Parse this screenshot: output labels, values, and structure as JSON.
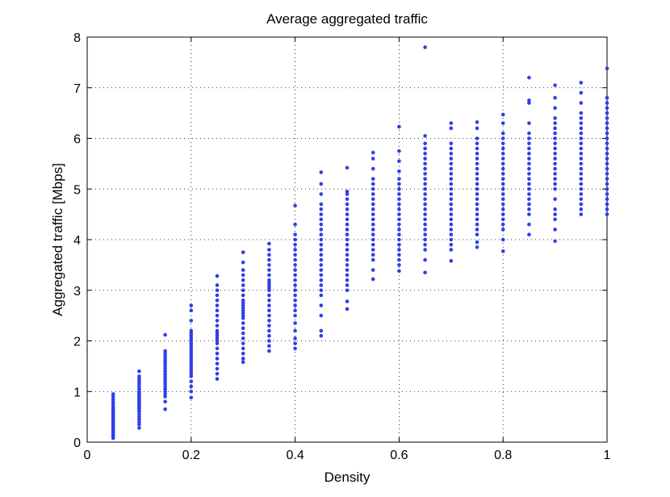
{
  "chart_data": {
    "type": "scatter",
    "title": "Average aggregated traffic",
    "xlabel": "Density",
    "ylabel": "Aggregated traffic [Mbps]",
    "xlim": [
      0,
      1
    ],
    "ylim": [
      0,
      8
    ],
    "x_ticks": [
      0,
      0.2,
      0.4,
      0.6,
      0.8,
      1
    ],
    "x_tick_labels": [
      "0",
      "0.2",
      "0.4",
      "0.6",
      "0.8",
      "1"
    ],
    "y_ticks": [
      0,
      1,
      2,
      3,
      4,
      5,
      6,
      7,
      8
    ],
    "y_tick_labels": [
      "0",
      "1",
      "2",
      "3",
      "4",
      "5",
      "6",
      "7",
      "8"
    ],
    "grid": true,
    "marker_color": "#2f3fe8",
    "groups": [
      {
        "x": 0.05,
        "y": [
          0.08,
          0.12,
          0.15,
          0.18,
          0.2,
          0.22,
          0.25,
          0.28,
          0.3,
          0.32,
          0.35,
          0.38,
          0.4,
          0.42,
          0.45,
          0.48,
          0.5,
          0.52,
          0.55,
          0.58,
          0.6,
          0.62,
          0.65,
          0.68,
          0.7,
          0.75,
          0.8,
          0.85,
          0.9,
          0.95
        ]
      },
      {
        "x": 0.1,
        "y": [
          0.28,
          0.35,
          0.4,
          0.45,
          0.5,
          0.55,
          0.6,
          0.62,
          0.65,
          0.68,
          0.7,
          0.72,
          0.75,
          0.78,
          0.8,
          0.82,
          0.85,
          0.88,
          0.9,
          0.92,
          0.95,
          0.98,
          1.0,
          1.05,
          1.1,
          1.15,
          1.2,
          1.25,
          1.3,
          1.4
        ]
      },
      {
        "x": 0.15,
        "y": [
          0.65,
          0.8,
          0.9,
          0.95,
          1.0,
          1.05,
          1.1,
          1.15,
          1.2,
          1.25,
          1.3,
          1.35,
          1.4,
          1.45,
          1.5,
          1.55,
          1.6,
          1.65,
          1.7,
          1.75,
          1.8,
          2.12
        ]
      },
      {
        "x": 0.2,
        "y": [
          0.88,
          1.0,
          1.1,
          1.2,
          1.3,
          1.35,
          1.4,
          1.45,
          1.5,
          1.55,
          1.6,
          1.65,
          1.7,
          1.75,
          1.8,
          1.85,
          1.9,
          1.95,
          2.0,
          2.05,
          2.1,
          2.15,
          2.2,
          2.4,
          2.6,
          2.7
        ]
      },
      {
        "x": 0.25,
        "y": [
          1.25,
          1.35,
          1.45,
          1.55,
          1.65,
          1.75,
          1.85,
          1.95,
          2.0,
          2.05,
          2.1,
          2.15,
          2.2,
          2.3,
          2.4,
          2.5,
          2.6,
          2.7,
          2.8,
          2.9,
          3.0,
          3.1,
          3.28
        ]
      },
      {
        "x": 0.3,
        "y": [
          1.58,
          1.65,
          1.75,
          1.85,
          1.95,
          2.05,
          2.15,
          2.25,
          2.35,
          2.45,
          2.5,
          2.55,
          2.6,
          2.65,
          2.7,
          2.75,
          2.8,
          2.9,
          3.0,
          3.1,
          3.2,
          3.3,
          3.4,
          3.55,
          3.75
        ]
      },
      {
        "x": 0.35,
        "y": [
          1.8,
          1.9,
          2.0,
          2.1,
          2.2,
          2.3,
          2.4,
          2.5,
          2.6,
          2.7,
          2.8,
          2.9,
          3.0,
          3.05,
          3.1,
          3.15,
          3.2,
          3.3,
          3.4,
          3.5,
          3.6,
          3.7,
          3.8,
          3.92
        ]
      },
      {
        "x": 0.4,
        "y": [
          1.85,
          1.95,
          2.05,
          2.2,
          2.35,
          2.5,
          2.6,
          2.7,
          2.8,
          2.9,
          3.0,
          3.1,
          3.2,
          3.3,
          3.4,
          3.5,
          3.6,
          3.7,
          3.8,
          3.9,
          4.0,
          4.1,
          4.3,
          4.67
        ]
      },
      {
        "x": 0.45,
        "y": [
          2.1,
          2.2,
          2.5,
          2.7,
          2.9,
          3.0,
          3.1,
          3.2,
          3.3,
          3.4,
          3.5,
          3.6,
          3.7,
          3.8,
          3.9,
          4.0,
          4.1,
          4.2,
          4.3,
          4.4,
          4.5,
          4.6,
          4.7,
          4.9,
          5.1,
          5.33
        ]
      },
      {
        "x": 0.5,
        "y": [
          2.63,
          2.78,
          3.0,
          3.1,
          3.2,
          3.3,
          3.4,
          3.5,
          3.6,
          3.7,
          3.8,
          3.9,
          4.0,
          4.1,
          4.2,
          4.3,
          4.4,
          4.5,
          4.6,
          4.7,
          4.8,
          4.9,
          4.95,
          5.42
        ]
      },
      {
        "x": 0.55,
        "y": [
          3.22,
          3.4,
          3.6,
          3.7,
          3.8,
          3.9,
          4.0,
          4.1,
          4.2,
          4.3,
          4.4,
          4.5,
          4.6,
          4.7,
          4.8,
          4.9,
          5.0,
          5.1,
          5.2,
          5.4,
          5.6,
          5.72
        ]
      },
      {
        "x": 0.6,
        "y": [
          3.38,
          3.5,
          3.6,
          3.7,
          3.8,
          3.9,
          4.0,
          4.1,
          4.2,
          4.3,
          4.4,
          4.5,
          4.6,
          4.7,
          4.8,
          4.9,
          5.0,
          5.1,
          5.2,
          5.35,
          5.55,
          5.75,
          6.23
        ]
      },
      {
        "x": 0.65,
        "y": [
          3.35,
          3.6,
          3.8,
          3.9,
          4.0,
          4.1,
          4.2,
          4.3,
          4.4,
          4.5,
          4.6,
          4.7,
          4.8,
          4.9,
          5.0,
          5.1,
          5.2,
          5.3,
          5.4,
          5.5,
          5.6,
          5.7,
          5.8,
          5.9,
          6.05,
          7.8
        ]
      },
      {
        "x": 0.7,
        "y": [
          3.58,
          3.8,
          3.9,
          4.0,
          4.1,
          4.2,
          4.3,
          4.4,
          4.5,
          4.6,
          4.7,
          4.8,
          4.9,
          5.0,
          5.1,
          5.2,
          5.3,
          5.4,
          5.5,
          5.6,
          5.7,
          5.8,
          5.9,
          6.2,
          6.3
        ]
      },
      {
        "x": 0.75,
        "y": [
          3.85,
          3.95,
          4.1,
          4.2,
          4.3,
          4.4,
          4.5,
          4.6,
          4.7,
          4.8,
          4.9,
          5.0,
          5.1,
          5.2,
          5.3,
          5.4,
          5.5,
          5.6,
          5.7,
          5.8,
          5.9,
          6.0,
          6.2,
          6.32
        ]
      },
      {
        "x": 0.8,
        "y": [
          3.77,
          4.0,
          4.2,
          4.3,
          4.4,
          4.5,
          4.6,
          4.7,
          4.8,
          4.9,
          5.0,
          5.1,
          5.2,
          5.3,
          5.4,
          5.5,
          5.6,
          5.7,
          5.8,
          5.9,
          6.0,
          6.1,
          6.3,
          6.47
        ]
      },
      {
        "x": 0.85,
        "y": [
          4.1,
          4.3,
          4.5,
          4.6,
          4.7,
          4.8,
          4.9,
          5.0,
          5.1,
          5.2,
          5.3,
          5.4,
          5.5,
          5.6,
          5.7,
          5.8,
          5.9,
          6.0,
          6.1,
          6.3,
          6.7,
          6.75,
          7.2
        ]
      },
      {
        "x": 0.9,
        "y": [
          3.97,
          4.2,
          4.4,
          4.5,
          4.6,
          4.8,
          5.0,
          5.1,
          5.2,
          5.3,
          5.4,
          5.5,
          5.6,
          5.7,
          5.8,
          5.9,
          6.0,
          6.1,
          6.2,
          6.3,
          6.4,
          6.6,
          6.8,
          7.05
        ]
      },
      {
        "x": 0.95,
        "y": [
          4.5,
          4.6,
          4.7,
          4.8,
          4.9,
          5.0,
          5.1,
          5.2,
          5.3,
          5.4,
          5.5,
          5.6,
          5.7,
          5.8,
          5.9,
          6.0,
          6.1,
          6.2,
          6.3,
          6.4,
          6.5,
          6.7,
          6.9,
          7.1
        ]
      },
      {
        "x": 1.0,
        "y": [
          4.5,
          4.6,
          4.7,
          4.8,
          4.9,
          5.0,
          5.1,
          5.2,
          5.3,
          5.4,
          5.5,
          5.6,
          5.7,
          5.8,
          5.9,
          6.0,
          6.1,
          6.2,
          6.3,
          6.4,
          6.5,
          6.6,
          6.7,
          6.8,
          7.38
        ]
      }
    ]
  }
}
